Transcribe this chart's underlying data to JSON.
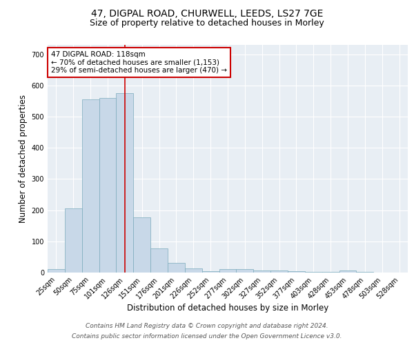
{
  "title_line1": "47, DIGPAL ROAD, CHURWELL, LEEDS, LS27 7GE",
  "title_line2": "Size of property relative to detached houses in Morley",
  "xlabel": "Distribution of detached houses by size in Morley",
  "ylabel": "Number of detached properties",
  "categories": [
    "25sqm",
    "50sqm",
    "75sqm",
    "101sqm",
    "126sqm",
    "151sqm",
    "176sqm",
    "201sqm",
    "226sqm",
    "252sqm",
    "277sqm",
    "302sqm",
    "327sqm",
    "352sqm",
    "377sqm",
    "403sqm",
    "428sqm",
    "453sqm",
    "478sqm",
    "503sqm",
    "528sqm"
  ],
  "values": [
    12,
    205,
    555,
    560,
    575,
    178,
    78,
    30,
    13,
    5,
    10,
    10,
    7,
    7,
    5,
    3,
    2,
    7,
    2,
    1,
    1
  ],
  "bar_color": "#c8d8e8",
  "bar_edge_color": "#7aaabb",
  "red_line_x": 4.5,
  "red_line_color": "#cc0000",
  "annotation_text": "47 DIGPAL ROAD: 118sqm\n← 70% of detached houses are smaller (1,153)\n29% of semi-detached houses are larger (470) →",
  "annotation_box_color": "white",
  "annotation_box_edge_color": "#cc0000",
  "ylim": [
    0,
    730
  ],
  "yticks": [
    0,
    100,
    200,
    300,
    400,
    500,
    600,
    700
  ],
  "background_color": "#e8eef4",
  "grid_color": "white",
  "footer_line1": "Contains HM Land Registry data © Crown copyright and database right 2024.",
  "footer_line2": "Contains public sector information licensed under the Open Government Licence v3.0.",
  "title_fontsize": 10,
  "subtitle_fontsize": 9,
  "axis_label_fontsize": 8.5,
  "tick_fontsize": 7,
  "annotation_fontsize": 7.5,
  "footer_fontsize": 6.5
}
